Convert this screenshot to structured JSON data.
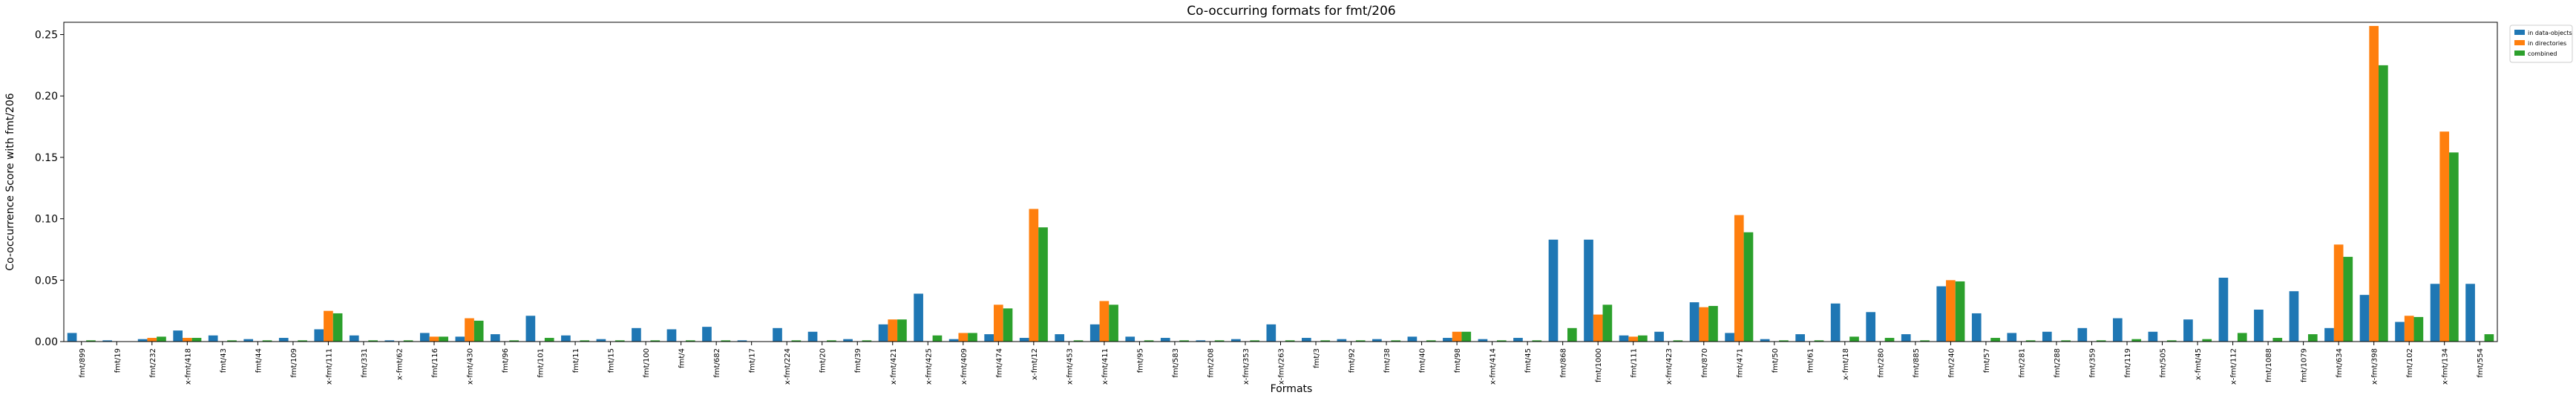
{
  "chart_data": {
    "type": "bar",
    "title": "Co-occurring formats for fmt/206",
    "xlabel": "Formats",
    "ylabel": "Co-occurrence Score with fmt/206",
    "categories": [
      "fmt/899",
      "fmt/19",
      "fmt/232",
      "x-fmt/418",
      "fmt/43",
      "fmt/44",
      "fmt/109",
      "x-fmt/111",
      "fmt/331",
      "x-fmt/62",
      "fmt/116",
      "x-fmt/430",
      "fmt/96",
      "fmt/101",
      "fmt/11",
      "fmt/15",
      "fmt/100",
      "fmt/4",
      "fmt/682",
      "fmt/17",
      "x-fmt/224",
      "fmt/20",
      "fmt/39",
      "x-fmt/421",
      "x-fmt/425",
      "x-fmt/409",
      "fmt/474",
      "x-fmt/12",
      "x-fmt/453",
      "x-fmt/411",
      "fmt/95",
      "fmt/583",
      "fmt/208",
      "x-fmt/353",
      "x-fmt/263",
      "fmt/3",
      "fmt/92",
      "fmt/38",
      "fmt/40",
      "fmt/98",
      "x-fmt/414",
      "fmt/45",
      "fmt/868",
      "fmt/1000",
      "fmt/111",
      "x-fmt/423",
      "fmt/870",
      "fmt/471",
      "fmt/50",
      "fmt/61",
      "x-fmt/18",
      "fmt/280",
      "fmt/885",
      "fmt/240",
      "fmt/57",
      "fmt/281",
      "fmt/288",
      "fmt/359",
      "fmt/119",
      "fmt/505",
      "x-fmt/45",
      "x-fmt/112",
      "fmt/1088",
      "fmt/1079",
      "fmt/634",
      "x-fmt/398",
      "fmt/102",
      "x-fmt/134",
      "fmt/554"
    ],
    "series": [
      {
        "name": "in data-objects",
        "color": "#1f77b4",
        "values": [
          0.007,
          0.001,
          0.002,
          0.009,
          0.005,
          0.002,
          0.003,
          0.01,
          0.005,
          0.001,
          0.007,
          0.004,
          0.006,
          0.021,
          0.005,
          0.002,
          0.011,
          0.01,
          0.012,
          0.001,
          0.011,
          0.008,
          0.002,
          0.014,
          0.039,
          0.002,
          0.006,
          0.003,
          0.006,
          0.014,
          0.004,
          0.003,
          0.001,
          0.002,
          0.014,
          0.003,
          0.002,
          0.002,
          0.004,
          0.003,
          0.002,
          0.003,
          0.083,
          0.083,
          0.005,
          0.008,
          0.032,
          0.007,
          0.002,
          0.006,
          0.031,
          0.024,
          0.006,
          0.045,
          0.023,
          0.007,
          0.008,
          0.011,
          0.019,
          0.008,
          0.018,
          0.052,
          0.026,
          0.041,
          0.011,
          0.038,
          0.016,
          0.047,
          0.047
        ]
      },
      {
        "name": "in directories",
        "color": "#ff7f0e",
        "values": [
          0,
          0,
          0.003,
          0.003,
          0,
          0,
          0,
          0.025,
          0,
          0,
          0.004,
          0.019,
          0,
          0,
          0,
          0,
          0,
          0,
          0,
          0,
          0,
          0,
          0,
          0.018,
          0,
          0.007,
          0.03,
          0.108,
          0,
          0.033,
          0,
          0,
          0,
          0,
          0,
          0,
          0,
          0,
          0,
          0.008,
          0,
          0,
          0,
          0.022,
          0.004,
          0,
          0.028,
          0.103,
          0,
          0,
          0,
          0,
          0,
          0.05,
          0,
          0,
          0,
          0,
          0,
          0,
          0,
          0,
          0,
          0,
          0.079,
          0.257,
          0.021,
          0.171,
          0
        ]
      },
      {
        "name": "combined",
        "color": "#2ca02c",
        "values": [
          0.001,
          0,
          0.004,
          0.003,
          0.001,
          0.001,
          0.001,
          0.023,
          0.001,
          0.001,
          0.004,
          0.017,
          0.001,
          0.003,
          0.001,
          0.001,
          0.001,
          0.001,
          0.001,
          0,
          0.001,
          0.001,
          0.001,
          0.018,
          0.005,
          0.007,
          0.027,
          0.093,
          0.001,
          0.03,
          0.001,
          0.001,
          0.001,
          0.001,
          0.001,
          0.001,
          0.001,
          0.001,
          0.001,
          0.008,
          0.001,
          0.001,
          0.011,
          0.03,
          0.005,
          0.001,
          0.029,
          0.089,
          0.001,
          0.001,
          0.004,
          0.003,
          0.001,
          0.049,
          0.003,
          0.001,
          0.001,
          0.001,
          0.002,
          0.001,
          0.002,
          0.007,
          0.003,
          0.006,
          0.069,
          0.225,
          0.02,
          0.154,
          0.006
        ]
      }
    ],
    "ylim": [
      0,
      0.26
    ],
    "yticks": [
      {
        "value": 0,
        "label": "0.00"
      },
      {
        "value": 0.05,
        "label": "0.05"
      },
      {
        "value": 0.1,
        "label": "0.10"
      },
      {
        "value": 0.15,
        "label": "0.15"
      },
      {
        "value": 0.2,
        "label": "0.20"
      },
      {
        "value": 0.25,
        "label": "0.25"
      }
    ],
    "legend": "upper right outside"
  }
}
